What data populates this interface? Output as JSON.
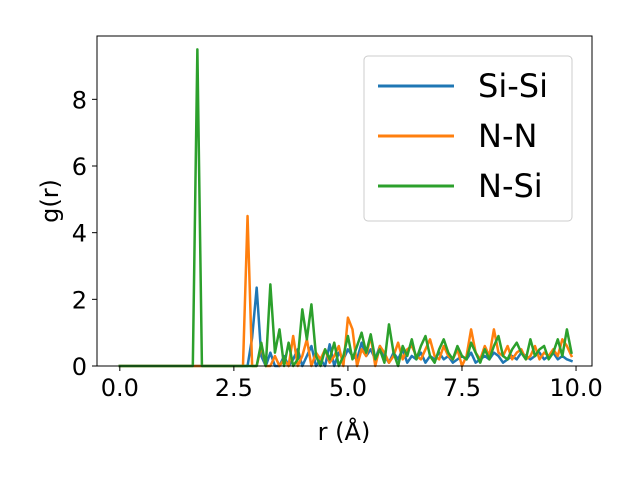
{
  "chart_data": {
    "type": "line",
    "title": "",
    "xlabel": "r (Å)",
    "ylabel": "g(r)",
    "xlim": [
      -0.5,
      10.35
    ],
    "ylim": [
      0,
      9.9
    ],
    "xticks": [
      0.0,
      2.5,
      5.0,
      7.5,
      10.0
    ],
    "xtick_labels": [
      "0.0",
      "2.5",
      "5.0",
      "7.5",
      "10.0"
    ],
    "yticks": [
      0,
      2,
      4,
      6,
      8
    ],
    "ytick_labels": [
      "0",
      "2",
      "4",
      "6",
      "8"
    ],
    "grid": false,
    "legend_position": "top-right",
    "x": [
      0.0,
      0.1,
      0.2,
      0.3,
      0.4,
      0.5,
      0.6,
      0.7,
      0.8,
      0.9,
      1.0,
      1.1,
      1.2,
      1.3,
      1.4,
      1.5,
      1.6,
      1.7,
      1.8,
      1.9,
      2.0,
      2.1,
      2.2,
      2.3,
      2.4,
      2.5,
      2.6,
      2.7,
      2.8,
      2.9,
      3.0,
      3.1,
      3.2,
      3.3,
      3.4,
      3.5,
      3.6,
      3.7,
      3.8,
      3.9,
      4.0,
      4.1,
      4.2,
      4.3,
      4.4,
      4.5,
      4.6,
      4.7,
      4.8,
      4.9,
      5.0,
      5.1,
      5.2,
      5.3,
      5.4,
      5.5,
      5.6,
      5.7,
      5.8,
      5.9,
      6.0,
      6.1,
      6.2,
      6.3,
      6.4,
      6.5,
      6.6,
      6.7,
      6.8,
      6.9,
      7.0,
      7.1,
      7.2,
      7.3,
      7.4,
      7.5,
      7.6,
      7.7,
      7.8,
      7.9,
      8.0,
      8.1,
      8.2,
      8.3,
      8.4,
      8.5,
      8.6,
      8.7,
      8.8,
      8.9,
      9.0,
      9.1,
      9.2,
      9.3,
      9.4,
      9.5,
      9.6,
      9.7,
      9.8,
      9.9
    ],
    "series": [
      {
        "name": "Si-Si",
        "color": "#1f77b4",
        "values": [
          0,
          0,
          0,
          0,
          0,
          0,
          0,
          0,
          0,
          0,
          0,
          0,
          0,
          0,
          0,
          0,
          0,
          0,
          0,
          0,
          0,
          0,
          0,
          0,
          0,
          0,
          0,
          0,
          0,
          0.85,
          2.35,
          0.3,
          0,
          0.4,
          0,
          0,
          0.3,
          0,
          0.2,
          0.5,
          0,
          0.3,
          0.6,
          0,
          0.2,
          0,
          0.65,
          0,
          0.4,
          0.2,
          0.5,
          0.3,
          0.2,
          0.7,
          0.3,
          0.5,
          0.2,
          0.6,
          0.3,
          0.1,
          0.4,
          0.2,
          0.5,
          0.1,
          0.3,
          0.2,
          0.4,
          0.1,
          0.3,
          0.2,
          0.4,
          0.2,
          0.3,
          0.1,
          0.2,
          0.3,
          0.2,
          0.4,
          0.1,
          0.2,
          0.3,
          0.2,
          0.4,
          0.3,
          0.1,
          0.2,
          0.3,
          0.2,
          0.4,
          0.3,
          0.2,
          0.3,
          0.4,
          0.2,
          0.3,
          0.4,
          0.2,
          0.3,
          0.2,
          0.15
        ]
      },
      {
        "name": "N-N",
        "color": "#ff7f0e",
        "values": [
          0,
          0,
          0,
          0,
          0,
          0,
          0,
          0,
          0,
          0,
          0,
          0,
          0,
          0,
          0,
          0,
          0,
          0,
          0,
          0,
          0,
          0,
          0,
          0,
          0,
          0,
          0,
          0,
          4.5,
          0,
          0,
          0.6,
          0,
          0,
          0.3,
          0,
          0.2,
          0,
          0.9,
          0,
          0.3,
          0.8,
          0,
          0.4,
          0.2,
          0.5,
          0.1,
          0.3,
          0.6,
          0,
          1.45,
          1.1,
          0,
          0.5,
          0.3,
          0.9,
          0,
          0.6,
          0.4,
          0.1,
          0.3,
          0.7,
          0.2,
          0.5,
          0.6,
          0.3,
          0.2,
          0.5,
          0.8,
          0.3,
          0.2,
          0.6,
          0.3,
          0.2,
          0.5,
          0,
          0.3,
          1.1,
          0.4,
          0.2,
          0.6,
          0.3,
          1.1,
          0.4,
          0.3,
          0.6,
          0.2,
          0.4,
          0.5,
          0.2,
          0.3,
          0.6,
          0.2,
          0.4,
          0.3,
          0.5,
          0.3,
          0.8,
          0.6,
          0.3
        ]
      },
      {
        "name": "N-Si",
        "color": "#2ca02c",
        "values": [
          0,
          0,
          0,
          0,
          0,
          0,
          0,
          0,
          0,
          0,
          0,
          0,
          0,
          0,
          0,
          0,
          0,
          9.5,
          0,
          0,
          0,
          0,
          0,
          0,
          0,
          0,
          0,
          0,
          0,
          0,
          0,
          0.7,
          0,
          2.45,
          0.4,
          1.1,
          0,
          0.7,
          0,
          0.2,
          1.7,
          0.8,
          1.85,
          0.3,
          0,
          0.5,
          0.2,
          0.7,
          0,
          0.3,
          0.9,
          0.2,
          0.6,
          1.0,
          0.4,
          0.95,
          0.2,
          0.5,
          0.1,
          1.25,
          0.4,
          0,
          0.6,
          0.3,
          0.8,
          0.2,
          0.6,
          0.9,
          0.3,
          0.1,
          0.5,
          0.8,
          0.4,
          0.2,
          0.6,
          0.3,
          0.2,
          0.7,
          0.4,
          0.1,
          0.5,
          0.2,
          0.6,
          0.9,
          0.3,
          0.2,
          0.5,
          0.7,
          0.4,
          0.2,
          0.8,
          0.3,
          0.5,
          0.6,
          0.2,
          0.4,
          0.8,
          0.3,
          1.1,
          0.4
        ]
      }
    ]
  }
}
